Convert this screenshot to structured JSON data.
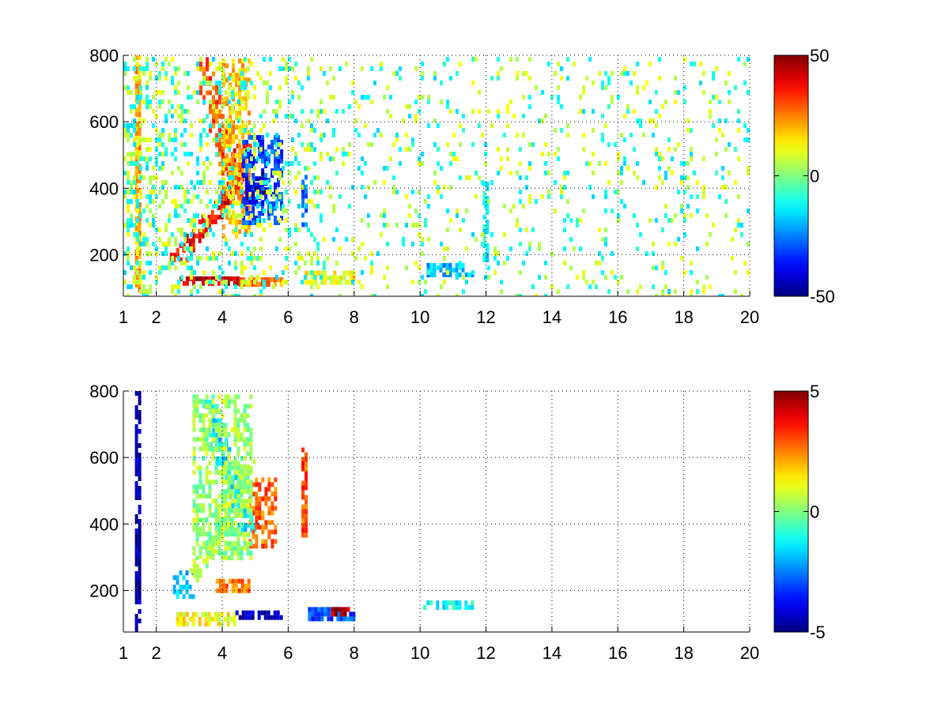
{
  "chart_data": [
    {
      "type": "heatmap",
      "title": "",
      "xlabel": "",
      "ylabel": "",
      "xlim": [
        1,
        20
      ],
      "ylim": [
        75,
        800
      ],
      "x_ticks": [
        1,
        2,
        4,
        6,
        8,
        10,
        12,
        14,
        16,
        18,
        20
      ],
      "y_ticks": [
        200,
        400,
        600,
        800
      ],
      "grid": true,
      "grid_style": "dotted",
      "colormap": "jet",
      "colorbar": {
        "min": -50,
        "max": 50,
        "ticks": [
          50,
          0,
          -50
        ]
      },
      "features": [
        {
          "shape": "band",
          "x": [
            2.7,
            4.5
          ],
          "y": [
            112,
            135
          ],
          "value": 42
        },
        {
          "shape": "band",
          "x": [
            4.5,
            5.8
          ],
          "y": [
            116,
            132
          ],
          "value": 24
        },
        {
          "shape": "band",
          "x": [
            6.5,
            8.0
          ],
          "y": [
            118,
            152
          ],
          "value": 12
        },
        {
          "shape": "curve",
          "x": [
            2.6,
            3.2,
            3.8,
            4.3,
            4.6
          ],
          "y": [
            200,
            260,
            340,
            420,
            520
          ],
          "value": 38
        },
        {
          "shape": "curve",
          "x": [
            3.4,
            3.7,
            4.0,
            4.3,
            4.6
          ],
          "y": [
            780,
            650,
            520,
            430,
            380
          ],
          "value": 30
        },
        {
          "shape": "patch",
          "x": [
            4.0,
            4.8
          ],
          "y": [
            250,
            790
          ],
          "value": 18
        },
        {
          "shape": "patch",
          "x": [
            4.6,
            5.8
          ],
          "y": [
            300,
            560
          ],
          "value": -30
        },
        {
          "shape": "patch",
          "x": [
            4.7,
            5.3
          ],
          "y": [
            360,
            450
          ],
          "value": -42
        },
        {
          "shape": "band",
          "x": [
            10.2,
            11.6
          ],
          "y": [
            140,
            175
          ],
          "value": -20
        },
        {
          "shape": "column",
          "x": [
            1.35,
            1.45
          ],
          "y": [
            75,
            800
          ],
          "value": 20
        },
        {
          "shape": "column",
          "x": [
            11.9,
            12.0
          ],
          "y": [
            180,
            420
          ],
          "value": -12
        },
        {
          "shape": "column",
          "x": [
            6.4,
            6.5
          ],
          "y": [
            290,
            440
          ],
          "value": -28
        },
        {
          "shape": "scatter",
          "x": [
            1.0,
            20.0
          ],
          "y": [
            75,
            800
          ],
          "value": 0
        }
      ]
    },
    {
      "type": "heatmap",
      "title": "",
      "xlabel": "",
      "ylabel": "",
      "xlim": [
        1,
        20
      ],
      "ylim": [
        75,
        800
      ],
      "x_ticks": [
        1,
        2,
        4,
        6,
        8,
        10,
        12,
        14,
        16,
        18,
        20
      ],
      "y_ticks": [
        200,
        400,
        600,
        800
      ],
      "grid": true,
      "grid_style": "dotted",
      "colormap": "jet",
      "colorbar": {
        "min": -5,
        "max": 5,
        "ticks": [
          5,
          0,
          -5
        ]
      },
      "features": [
        {
          "shape": "band",
          "x": [
            2.6,
            4.4
          ],
          "y": [
            105,
            135
          ],
          "value": 1.2
        },
        {
          "shape": "band",
          "x": [
            4.4,
            5.8
          ],
          "y": [
            115,
            140
          ],
          "value": -4.5
        },
        {
          "shape": "band",
          "x": [
            3.8,
            4.8
          ],
          "y": [
            200,
            235
          ],
          "value": 2.5
        },
        {
          "shape": "patch",
          "x": [
            2.5,
            3.1
          ],
          "y": [
            180,
            260
          ],
          "value": -2.0
        },
        {
          "shape": "curve",
          "x": [
            3.2,
            3.8,
            4.3,
            4.7
          ],
          "y": [
            260,
            360,
            460,
            580
          ],
          "value": 0.4
        },
        {
          "shape": "curve",
          "x": [
            3.6,
            4.0,
            4.4,
            4.8
          ],
          "y": [
            760,
            600,
            480,
            400
          ],
          "value": -1.5
        },
        {
          "shape": "patch",
          "x": [
            4.8,
            5.6
          ],
          "y": [
            330,
            540
          ],
          "value": 2.8
        },
        {
          "shape": "patch",
          "x": [
            3.1,
            4.9
          ],
          "y": [
            300,
            790
          ],
          "value": 0.2
        },
        {
          "shape": "column",
          "x": [
            1.35,
            1.45
          ],
          "y": [
            75,
            800
          ],
          "value": -4.6
        },
        {
          "shape": "column",
          "x": [
            6.4,
            6.5
          ],
          "y": [
            370,
            630
          ],
          "value": 3.0
        },
        {
          "shape": "band",
          "x": [
            6.6,
            8.0
          ],
          "y": [
            120,
            150
          ],
          "value": -3.0
        },
        {
          "shape": "band",
          "x": [
            7.3,
            7.8
          ],
          "y": [
            125,
            150
          ],
          "value": 4.5
        },
        {
          "shape": "band",
          "x": [
            10.1,
            11.6
          ],
          "y": [
            150,
            170
          ],
          "value": -1.2
        }
      ]
    }
  ]
}
